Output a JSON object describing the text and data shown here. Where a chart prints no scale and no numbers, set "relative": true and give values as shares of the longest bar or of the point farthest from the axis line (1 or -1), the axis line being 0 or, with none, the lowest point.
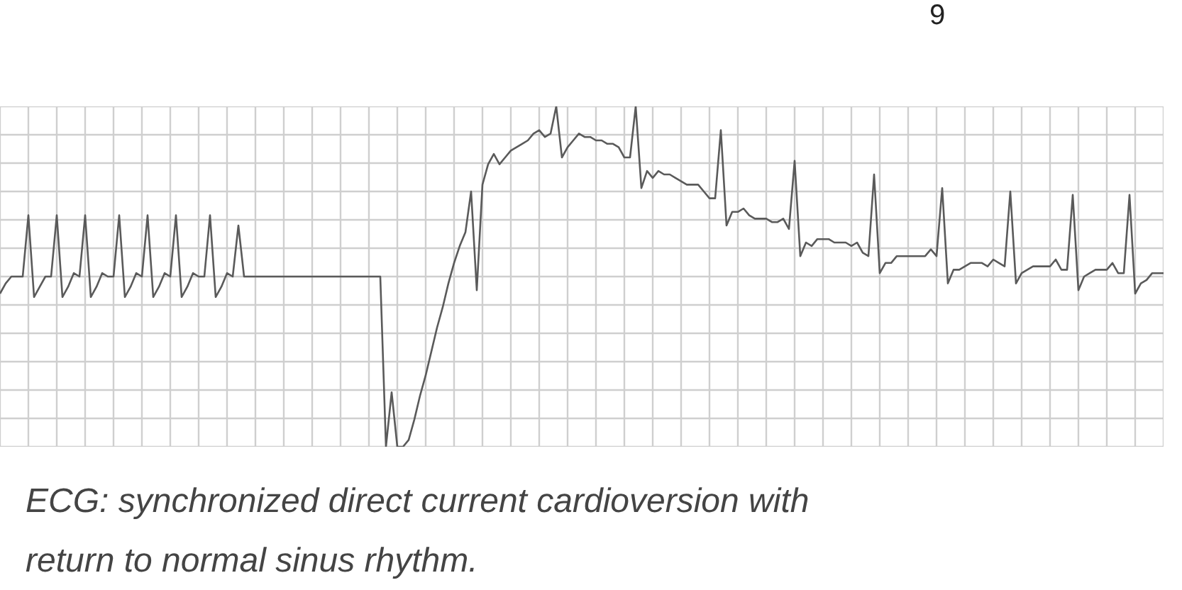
{
  "chart_data": {
    "type": "line",
    "relative": true,
    "grid": true,
    "color": "#5a5a5a",
    "annotations": [
      "9",
      "ECG: synchronized direct current cardioversion with return to normal sinus rhythm."
    ],
    "categories": [
      null,
      null,
      null,
      null,
      null,
      null,
      null,
      null,
      null,
      null,
      null,
      null,
      null,
      null,
      null,
      null,
      null,
      null,
      null,
      null,
      null,
      null,
      null,
      null,
      null,
      null,
      null,
      null,
      null,
      null,
      null,
      null,
      null,
      null,
      null,
      null,
      null,
      null,
      null,
      null,
      null,
      null,
      null,
      null,
      null,
      null,
      null,
      null,
      null,
      null,
      null,
      null,
      null,
      null,
      null,
      null,
      null,
      null,
      null,
      null,
      null,
      null,
      null,
      null,
      null,
      null,
      null,
      null,
      null,
      null,
      null,
      null,
      null,
      null,
      null,
      null,
      null,
      null,
      null,
      null,
      null,
      null,
      null,
      null,
      null,
      null,
      null,
      null,
      null,
      null,
      null,
      null,
      null,
      null,
      null,
      null,
      null,
      null,
      null,
      null,
      null,
      null,
      null,
      null,
      null,
      null,
      null,
      null,
      null,
      null,
      null,
      null,
      null,
      null,
      null,
      null,
      null,
      null,
      null,
      null,
      null,
      null,
      null,
      null,
      null,
      null,
      null,
      null,
      null,
      null,
      null,
      null,
      null,
      null,
      null,
      null,
      null,
      null,
      null,
      null,
      null,
      null,
      null,
      null,
      null,
      null,
      null,
      null,
      null,
      null,
      null,
      null,
      null,
      null,
      null,
      null,
      null,
      null,
      null,
      null,
      null,
      null,
      null,
      null,
      null,
      null,
      null,
      null,
      null,
      null,
      null,
      null,
      null,
      null,
      null,
      null,
      null,
      null,
      null,
      null,
      null,
      null,
      null,
      null,
      null,
      null,
      null,
      null,
      null,
      null,
      null,
      null,
      null,
      null,
      null,
      null,
      null,
      null,
      null,
      null,
      null,
      null,
      null,
      null,
      null,
      null
    ],
    "values": [
      0.45,
      0.48,
      0.5,
      0.5,
      0.5,
      0.68,
      0.44,
      0.47,
      0.5,
      0.5,
      0.68,
      0.44,
      0.47,
      0.51,
      0.5,
      0.68,
      0.44,
      0.47,
      0.51,
      0.5,
      0.5,
      0.68,
      0.44,
      0.47,
      0.51,
      0.5,
      0.68,
      0.44,
      0.47,
      0.51,
      0.5,
      0.68,
      0.44,
      0.47,
      0.51,
      0.5,
      0.5,
      0.68,
      0.44,
      0.47,
      0.51,
      0.5,
      0.65,
      0.5,
      0.5,
      0.5,
      0.5,
      0.5,
      0.5,
      0.5,
      0.5,
      0.5,
      0.5,
      0.5,
      0.5,
      0.5,
      0.5,
      0.5,
      0.5,
      0.5,
      0.5,
      0.5,
      0.5,
      0.5,
      0.5,
      0.5,
      0.5,
      0.5,
      0,
      0.16,
      0,
      0,
      0.02,
      0.08,
      0.15,
      0.21,
      0.28,
      0.35,
      0.41,
      0.48,
      0.54,
      0.59,
      0.63,
      0.75,
      0.46,
      0.77,
      0.83,
      0.86,
      0.83,
      0.85,
      0.87,
      0.88,
      0.89,
      0.9,
      0.92,
      0.93,
      0.91,
      0.92,
      1,
      0.85,
      0.88,
      0.9,
      0.92,
      0.91,
      0.91,
      0.9,
      0.9,
      0.89,
      0.89,
      0.88,
      0.85,
      0.85,
      1,
      0.76,
      0.81,
      0.79,
      0.81,
      0.8,
      0.8,
      0.79,
      0.78,
      0.77,
      0.77,
      0.77,
      0.75,
      0.73,
      0.73,
      0.93,
      0.65,
      0.69,
      0.69,
      0.7,
      0.68,
      0.67,
      0.67,
      0.67,
      0.66,
      0.66,
      0.67,
      0.64,
      0.84,
      0.56,
      0.6,
      0.59,
      0.61,
      0.61,
      0.61,
      0.6,
      0.6,
      0.6,
      0.59,
      0.6,
      0.57,
      0.56,
      0.8,
      0.51,
      0.54,
      0.54,
      0.56,
      0.56,
      0.56,
      0.56,
      0.56,
      0.56,
      0.58,
      0.56,
      0.76,
      0.48,
      0.52,
      0.52,
      0.53,
      0.54,
      0.54,
      0.54,
      0.53,
      0.55,
      0.54,
      0.53,
      0.75,
      0.48,
      0.51,
      0.52,
      0.53,
      0.53,
      0.53,
      0.53,
      0.55,
      0.52,
      0.52,
      0.74,
      0.46,
      0.5,
      0.51,
      0.52,
      0.52,
      0.52,
      0.54,
      0.51,
      0.51,
      0.74,
      0.45,
      0.48,
      0.49,
      0.51,
      0.51,
      0.51
    ]
  }
}
